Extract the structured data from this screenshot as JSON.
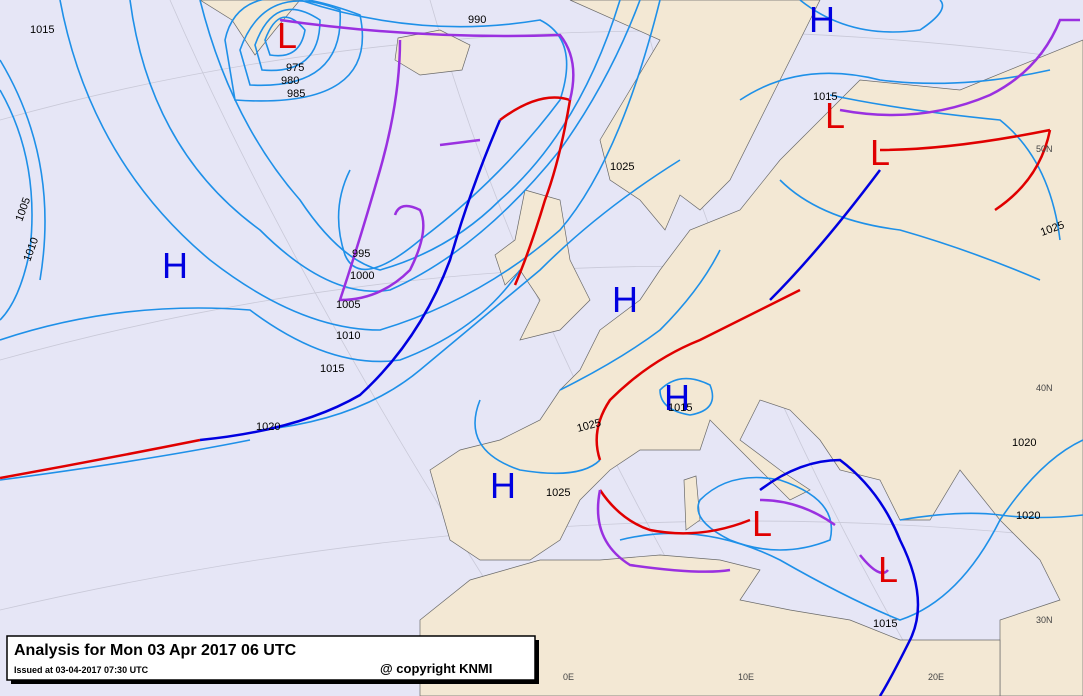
{
  "map": {
    "title": "Analysis for Mon 03 Apr 2017 06 UTC",
    "issued": "Issued at 03-04-2017  07:30 UTC",
    "copyright": "@ copyright KNMI",
    "pressure_centers": [
      "L",
      "H",
      "L",
      "L",
      "H",
      "H",
      "H",
      "H",
      "L",
      "L"
    ],
    "isobar_labels": [
      1015,
      975,
      980,
      985,
      990,
      995,
      1000,
      1005,
      1010,
      1015,
      1020,
      1005,
      1010,
      1015,
      1025,
      1025,
      1025,
      1015,
      1025,
      1020,
      1020,
      1015
    ],
    "grid_labels": [
      "0E",
      "10E",
      "20E",
      "30N",
      "40N",
      "50N"
    ]
  }
}
